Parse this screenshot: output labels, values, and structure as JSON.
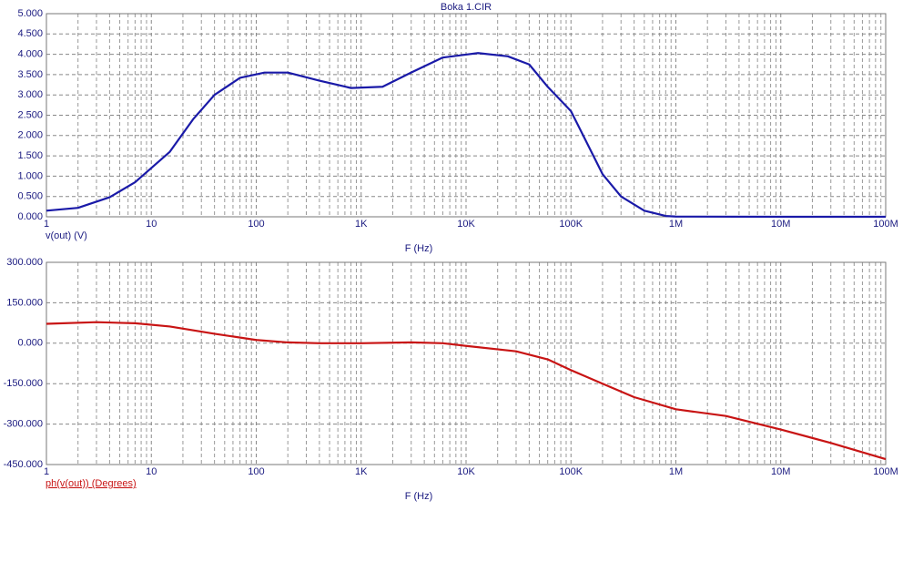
{
  "chart_data": [
    {
      "type": "line",
      "title": "Boka 1.CIR",
      "x_label": "F (Hz)",
      "y_label": "v(out) (V)",
      "xscale": "log",
      "grid": true,
      "minor_grid": true,
      "xlim": [
        1,
        100000000
      ],
      "ylim": [
        0,
        5
      ],
      "xticks": [
        1,
        10,
        100,
        {
          "value": 1000,
          "label": "1K"
        },
        {
          "value": 10000,
          "label": "10K"
        },
        {
          "value": 100000,
          "label": "100K"
        },
        {
          "value": 1000000,
          "label": "1M"
        },
        {
          "value": 10000000,
          "label": "10M"
        },
        {
          "value": 100000000,
          "label": "100M"
        }
      ],
      "yticks": [
        {
          "value": 0,
          "label": "0.000"
        },
        {
          "value": 0.5,
          "label": "0.500"
        },
        {
          "value": 1,
          "label": "1.000"
        },
        {
          "value": 1.5,
          "label": "1.500"
        },
        {
          "value": 2,
          "label": "2.000"
        },
        {
          "value": 2.5,
          "label": "2.500"
        },
        {
          "value": 3,
          "label": "3.000"
        },
        {
          "value": 3.5,
          "label": "3.500"
        },
        {
          "value": 4,
          "label": "4.000"
        },
        {
          "value": 4.5,
          "label": "4.500"
        },
        {
          "value": 5,
          "label": "5.000"
        }
      ],
      "x": [
        1,
        2,
        4,
        7,
        15,
        25,
        40,
        70,
        120,
        200,
        400,
        800,
        1600,
        3000,
        6000,
        13000,
        25000,
        40000,
        60000,
        100000,
        200000,
        300000,
        500000,
        800000,
        1000000,
        10000000,
        100000000
      ],
      "series": [
        {
          "name": "v(out)",
          "color": "#1a1aa8",
          "values": [
            0.15,
            0.22,
            0.48,
            0.85,
            1.6,
            2.4,
            3.0,
            3.42,
            3.55,
            3.55,
            3.35,
            3.17,
            3.2,
            3.55,
            3.92,
            4.03,
            3.95,
            3.75,
            3.2,
            2.6,
            1.05,
            0.5,
            0.15,
            0.02,
            0.005,
            0,
            0
          ]
        }
      ]
    },
    {
      "type": "line",
      "x_label": "F (Hz)",
      "y_label": "ph(v(out)) (Degrees)",
      "xscale": "log",
      "grid": true,
      "minor_grid": true,
      "xlim": [
        1,
        100000000
      ],
      "ylim": [
        -450,
        300
      ],
      "xticks": [
        1,
        10,
        100,
        {
          "value": 1000,
          "label": "1K"
        },
        {
          "value": 10000,
          "label": "10K"
        },
        {
          "value": 100000,
          "label": "100K"
        },
        {
          "value": 1000000,
          "label": "1M"
        },
        {
          "value": 10000000,
          "label": "10M"
        },
        {
          "value": 100000000,
          "label": "100M"
        }
      ],
      "yticks": [
        {
          "value": -450,
          "label": "-450.000"
        },
        {
          "value": -300,
          "label": "-300.000"
        },
        {
          "value": -150,
          "label": "-150.000"
        },
        {
          "value": 0,
          "label": "0.000"
        },
        {
          "value": 150,
          "label": "150.000"
        },
        {
          "value": 300,
          "label": "300.000"
        }
      ],
      "x": [
        1,
        3,
        7,
        15,
        40,
        100,
        200,
        400,
        1000,
        3000,
        6000,
        10000,
        30000,
        60000,
        100000,
        200000,
        400000,
        1000000,
        3000000,
        10000000,
        30000000,
        100000000
      ],
      "series": [
        {
          "name": "ph(v(out))",
          "color": "#c81414",
          "values": [
            72,
            78,
            74,
            62,
            35,
            12,
            3,
            0,
            0,
            3,
            0,
            -10,
            -30,
            -60,
            -100,
            -150,
            -200,
            -245,
            -270,
            -320,
            -370,
            -430
          ]
        }
      ]
    }
  ]
}
